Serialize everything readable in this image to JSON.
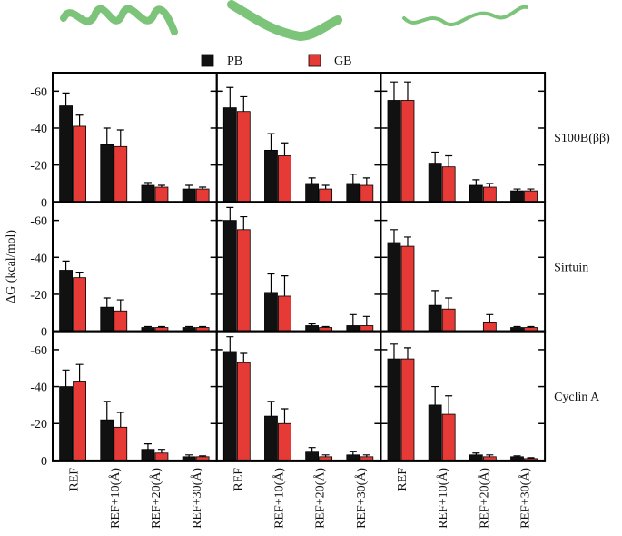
{
  "chart_data": [
    {
      "type": "bar",
      "ylim": [
        0,
        -70
      ],
      "yticks": [
        0,
        -20,
        -40,
        -60
      ],
      "series": [
        {
          "name": "PB",
          "color": "#111111",
          "values": [
            -52,
            -31,
            -9,
            -7
          ],
          "errors": [
            7,
            9,
            1.5,
            2
          ]
        },
        {
          "name": "GB",
          "color": "#e53a35",
          "values": [
            -41,
            -30,
            -8,
            -7
          ],
          "errors": [
            6,
            9,
            1,
            1
          ]
        }
      ]
    },
    {
      "type": "bar",
      "ylim": [
        0,
        -70
      ],
      "yticks": [
        0,
        -20,
        -40,
        -60
      ],
      "series": [
        {
          "color": "#111111",
          "values": [
            -51,
            -28,
            -10,
            -10
          ],
          "errors": [
            11,
            9,
            3,
            5
          ]
        },
        {
          "color": "#e53a35",
          "values": [
            -49,
            -25,
            -7,
            -9
          ],
          "errors": [
            8,
            7,
            2,
            4
          ]
        }
      ]
    },
    {
      "type": "bar",
      "ylim": [
        0,
        -70
      ],
      "yticks": [
        0,
        -20,
        -40,
        -60
      ],
      "row_label": "S100B(ββ)",
      "series": [
        {
          "color": "#111111",
          "values": [
            -55,
            -21,
            -9,
            -6
          ],
          "errors": [
            10,
            6,
            3,
            1
          ]
        },
        {
          "color": "#e53a35",
          "values": [
            -55,
            -19,
            -8,
            -6
          ],
          "errors": [
            10,
            6,
            2,
            1
          ]
        }
      ]
    },
    {
      "type": "bar",
      "ylim": [
        0,
        -70
      ],
      "yticks": [
        0,
        -20,
        -40,
        -60
      ],
      "ylabel": "ΔG (kcal/mol)",
      "series": [
        {
          "color": "#111111",
          "values": [
            -33,
            -13,
            -2,
            -2
          ],
          "errors": [
            5,
            5,
            0.5,
            0.5
          ]
        },
        {
          "color": "#e53a35",
          "values": [
            -29,
            -11,
            -2,
            -2
          ],
          "errors": [
            3,
            6,
            0.5,
            0.5
          ]
        }
      ]
    },
    {
      "type": "bar",
      "ylim": [
        0,
        -70
      ],
      "yticks": [
        0,
        -20,
        -40,
        -60
      ],
      "series": [
        {
          "color": "#111111",
          "values": [
            -60,
            -21,
            -3,
            -3
          ],
          "errors": [
            7,
            10,
            1,
            6
          ]
        },
        {
          "color": "#e53a35",
          "values": [
            -55,
            -19,
            -2,
            -3
          ],
          "errors": [
            7,
            11,
            0.5,
            5
          ]
        }
      ]
    },
    {
      "type": "bar",
      "ylim": [
        0,
        -70
      ],
      "yticks": [
        0,
        -20,
        -40,
        -60
      ],
      "row_label": "Sirtuin",
      "series": [
        {
          "color": "#111111",
          "values": [
            -48,
            -14,
            null,
            -2
          ],
          "errors": [
            7,
            8,
            null,
            0.5
          ]
        },
        {
          "color": "#e53a35",
          "values": [
            -46,
            -12,
            -5,
            -2
          ],
          "errors": [
            5,
            6,
            4,
            0.5
          ]
        }
      ]
    },
    {
      "type": "bar",
      "ylim": [
        0,
        -70
      ],
      "yticks": [
        0,
        -20,
        -40,
        -60
      ],
      "categories": [
        "REF",
        "REF+10(Å)",
        "REF+20(Å)",
        "REF+30(Å)"
      ],
      "series": [
        {
          "color": "#111111",
          "values": [
            -40,
            -22,
            -6,
            -2
          ],
          "errors": [
            9,
            10,
            3,
            1
          ]
        },
        {
          "color": "#e53a35",
          "values": [
            -43,
            -18,
            -4,
            -2
          ],
          "errors": [
            9,
            8,
            2,
            0.5
          ]
        }
      ]
    },
    {
      "type": "bar",
      "ylim": [
        0,
        -70
      ],
      "yticks": [
        0,
        -20,
        -40,
        -60
      ],
      "categories": [
        "REF",
        "REF+10(Å)",
        "REF+20(Å)",
        "REF+30(Å)"
      ],
      "series": [
        {
          "color": "#111111",
          "values": [
            -59,
            -24,
            -5,
            -3
          ],
          "errors": [
            8,
            8,
            2,
            2
          ]
        },
        {
          "color": "#e53a35",
          "values": [
            -53,
            -20,
            -2,
            -2
          ],
          "errors": [
            5,
            8,
            1,
            1
          ]
        }
      ]
    },
    {
      "type": "bar",
      "ylim": [
        0,
        -70
      ],
      "yticks": [
        0,
        -20,
        -40,
        -60
      ],
      "row_label": "Cyclin A",
      "categories": [
        "REF",
        "REF+10(Å)",
        "REF+20(Å)",
        "REF+30(Å)"
      ],
      "series": [
        {
          "color": "#111111",
          "values": [
            -55,
            -30,
            -3,
            -2
          ],
          "errors": [
            8,
            10,
            1,
            0.5
          ]
        },
        {
          "color": "#e53a35",
          "values": [
            -55,
            -25,
            -2,
            -1
          ],
          "errors": [
            6,
            10,
            1,
            0.5
          ]
        }
      ]
    }
  ]
}
